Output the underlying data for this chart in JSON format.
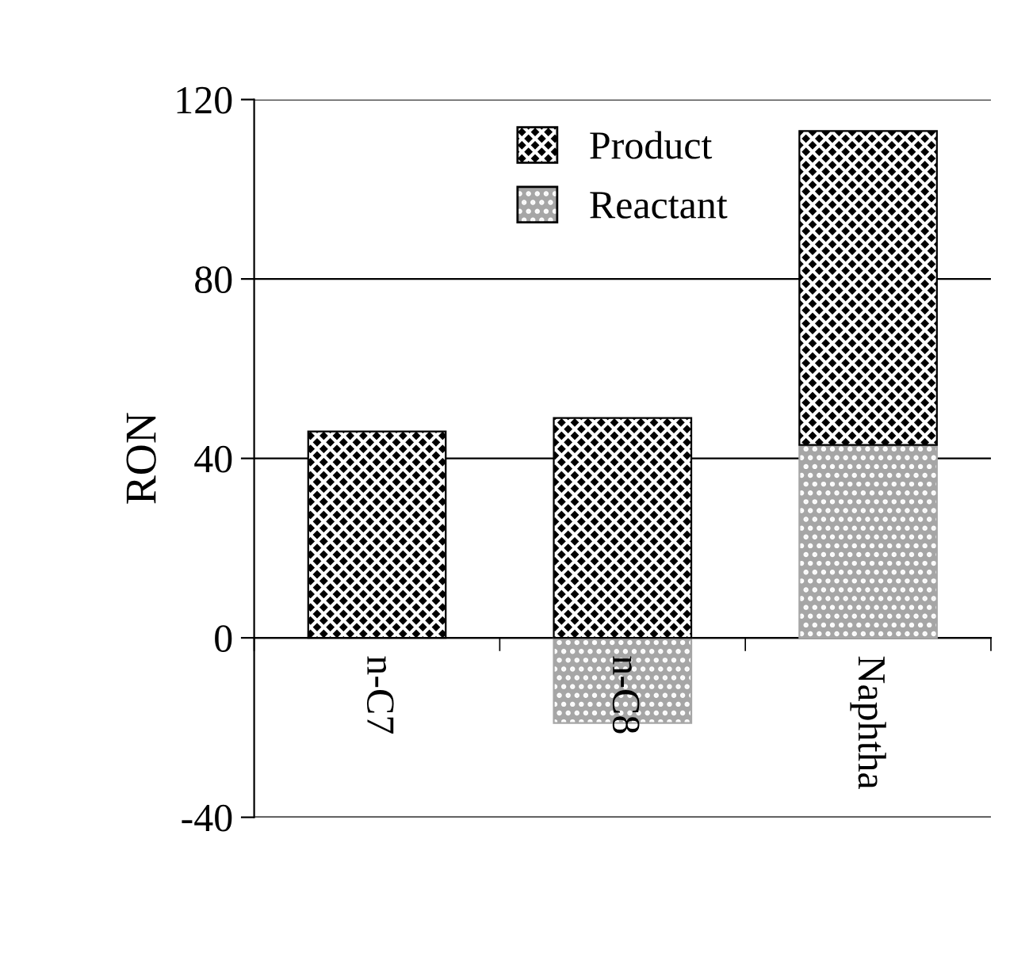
{
  "chart_data": {
    "type": "bar",
    "stacked": true,
    "ylabel": "RON",
    "categories": [
      "n-C7",
      "n-C8",
      "Naphtha"
    ],
    "series": [
      {
        "name": "Reactant",
        "color": "#a6a6a6",
        "values": [
          null,
          -19,
          43
        ]
      },
      {
        "name": "Product",
        "color": "#000000",
        "values": [
          46,
          49,
          70
        ]
      }
    ],
    "ylim": [
      -40,
      120
    ],
    "yticks": [
      -40,
      0,
      40,
      80,
      120
    ],
    "grid": "y",
    "legend": "top"
  }
}
